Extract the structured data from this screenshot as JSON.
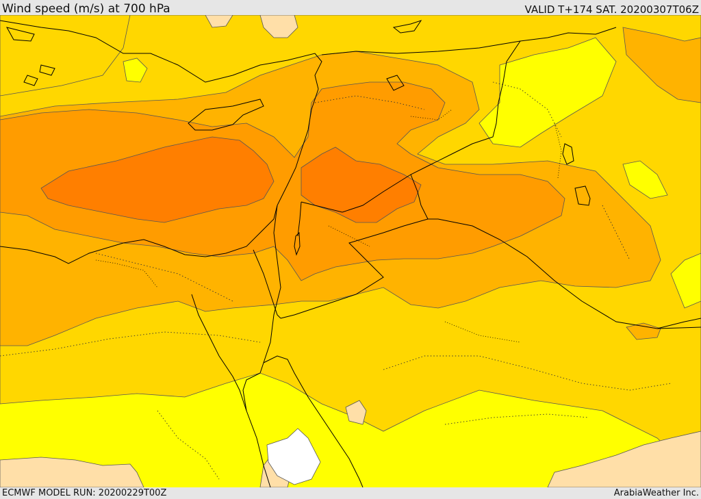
{
  "header": {
    "title": "Wind speed (m/s) at 700 hPa",
    "valid": "VALID T+174 SAT. 20200307T06Z"
  },
  "footer": {
    "model_run": "ECMWF MODEL RUN: 20200229T00Z",
    "credit": "ArabiaWeather Inc."
  },
  "colors": {
    "band_lt5": "#ffffff",
    "band_5_10": "#ffdfa8",
    "band_10_15": "#ffff00",
    "band_15_20": "#ffd700",
    "band_20_25": "#ffb300",
    "band_25_30": "#ff9c00",
    "band_30_plus": "#ff7f00",
    "contour": "#555555",
    "border": "#000000"
  }
}
